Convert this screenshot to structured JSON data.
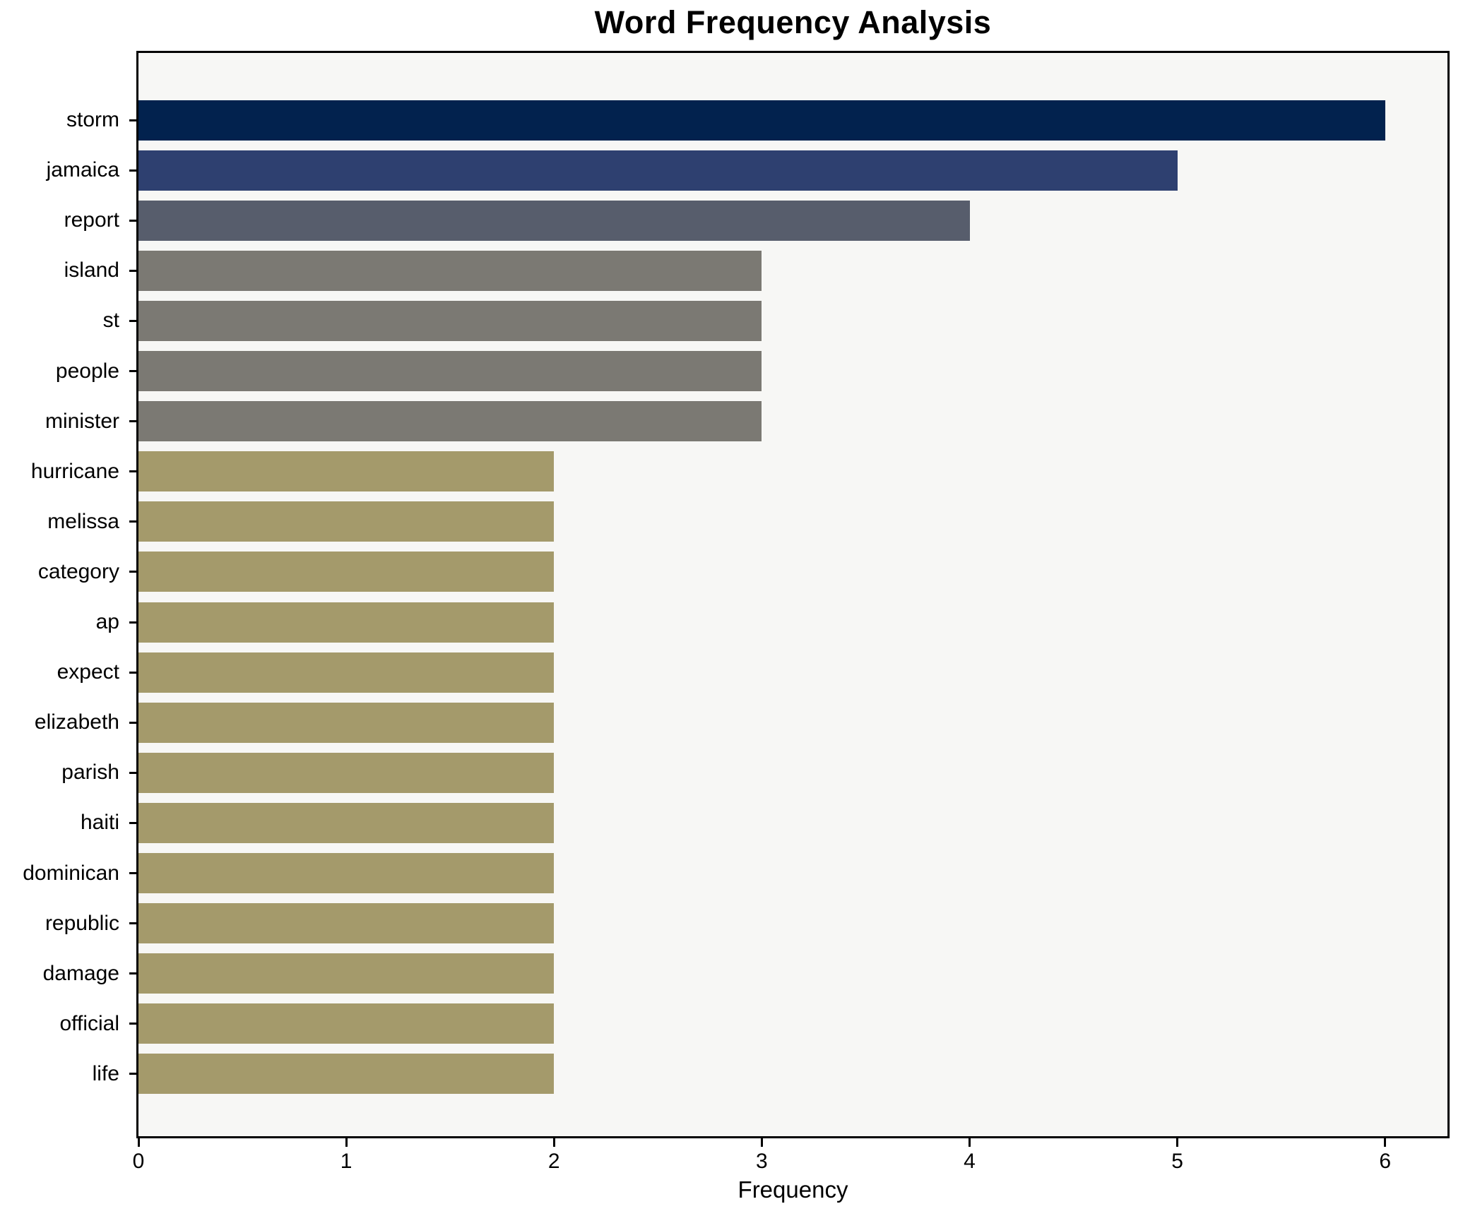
{
  "chart_data": {
    "type": "bar",
    "orientation": "horizontal",
    "title": "Word Frequency Analysis",
    "xlabel": "Frequency",
    "ylabel": "",
    "categories": [
      "storm",
      "jamaica",
      "report",
      "island",
      "st",
      "people",
      "minister",
      "hurricane",
      "melissa",
      "category",
      "ap",
      "expect",
      "elizabeth",
      "parish",
      "haiti",
      "dominican",
      "republic",
      "damage",
      "official",
      "life"
    ],
    "values": [
      6,
      5,
      4,
      3,
      3,
      3,
      3,
      2,
      2,
      2,
      2,
      2,
      2,
      2,
      2,
      2,
      2,
      2,
      2,
      2
    ],
    "bar_colors": [
      "#02224e",
      "#2e4070",
      "#575d6c",
      "#7b7973",
      "#7b7973",
      "#7b7973",
      "#7b7973",
      "#a49a6b",
      "#a49a6b",
      "#a49a6b",
      "#a49a6b",
      "#a49a6b",
      "#a49a6b",
      "#a49a6b",
      "#a49a6b",
      "#a49a6b",
      "#a49a6b",
      "#a49a6b",
      "#a49a6b",
      "#a49a6b"
    ],
    "x_ticks": [
      0,
      1,
      2,
      3,
      4,
      5,
      6
    ],
    "xlim": [
      0,
      6.3
    ],
    "grid": false,
    "legend": "none",
    "plot_background": "#f7f7f5",
    "page_background": "#ffffff",
    "axis_color": "#000000"
  }
}
